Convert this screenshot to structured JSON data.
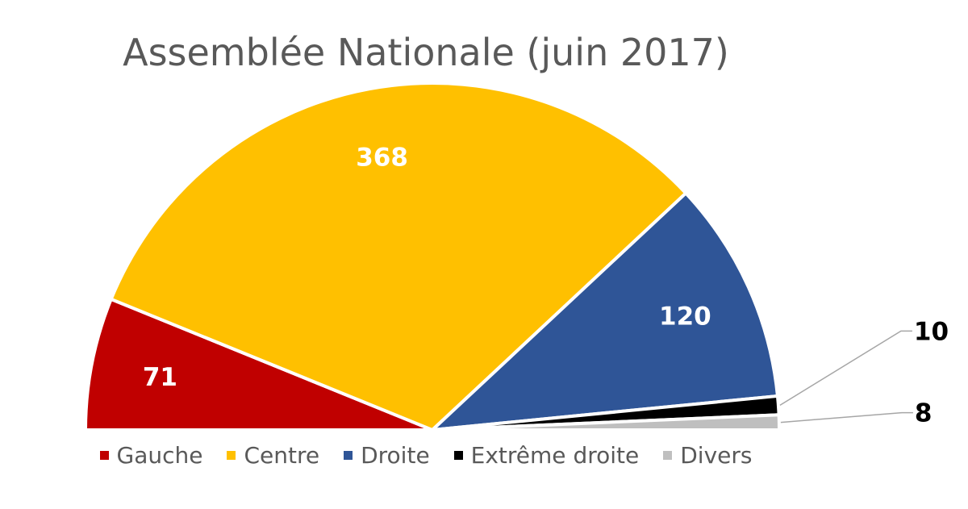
{
  "chart_data": {
    "type": "pie",
    "title": "Assemblée Nationale (juin 2017)",
    "categories": [
      "Gauche",
      "Centre",
      "Droite",
      "Extrême droite",
      "Divers"
    ],
    "values": [
      71,
      368,
      120,
      10,
      8
    ],
    "colors": [
      "#c00000",
      "#ffc000",
      "#2f5597",
      "#000000",
      "#bfbfbf"
    ],
    "value_label_colors": [
      "#ffffff",
      "#ffffff",
      "#ffffff",
      "#000000",
      "#000000"
    ],
    "legend_placement": "bottom",
    "shape": "half-donut"
  }
}
